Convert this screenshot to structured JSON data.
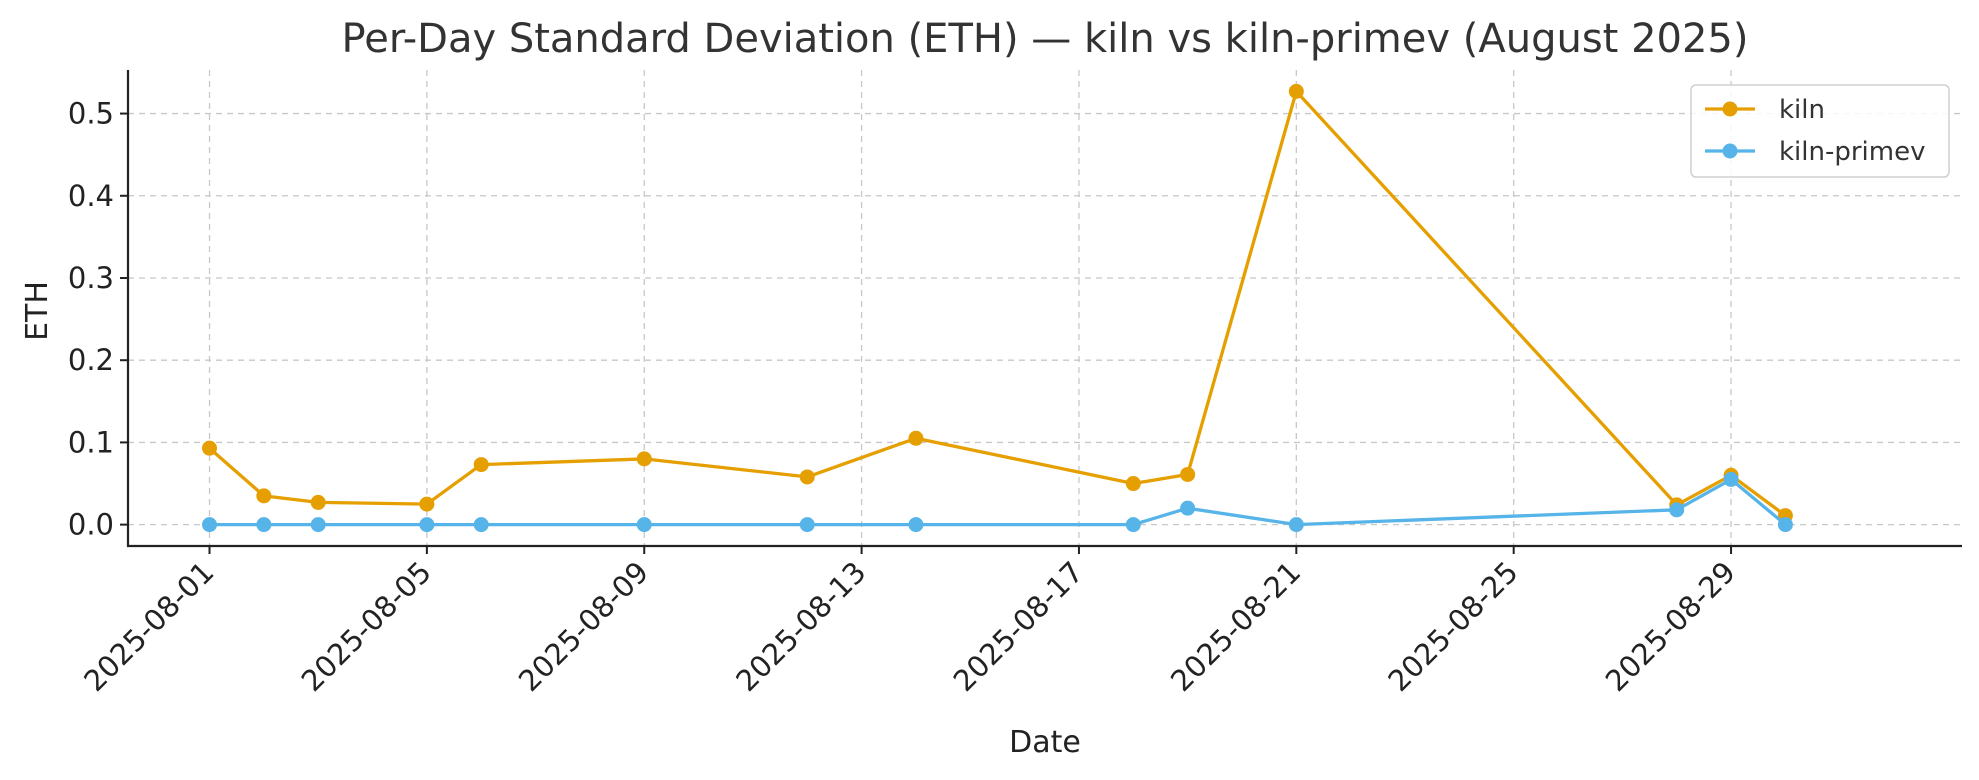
{
  "chart_data": {
    "type": "line",
    "title": "Per-Day Standard Deviation (ETH) — kiln vs kiln-primev (August 2025)",
    "xlabel": "Date",
    "ylabel": "ETH",
    "x_ticks": [
      "2025-08-01",
      "2025-08-05",
      "2025-08-09",
      "2025-08-13",
      "2025-08-17",
      "2025-08-21",
      "2025-08-25",
      "2025-08-29"
    ],
    "y_ticks": [
      0.0,
      0.1,
      0.2,
      0.3,
      0.4,
      0.5
    ],
    "y_tick_labels": [
      "0.0",
      "0.1",
      "0.2",
      "0.3",
      "0.4",
      "0.5"
    ],
    "xlim": [
      "2025-07-30T12:00",
      "2025-09-02T06:00"
    ],
    "ylim": [
      -0.026,
      0.553
    ],
    "grid": true,
    "legend_position": "top-right",
    "series": [
      {
        "name": "kiln",
        "color": "#E69F00",
        "points": [
          {
            "x": "2025-08-01",
            "y": 0.093
          },
          {
            "x": "2025-08-02",
            "y": 0.035
          },
          {
            "x": "2025-08-03",
            "y": 0.027
          },
          {
            "x": "2025-08-05",
            "y": 0.025
          },
          {
            "x": "2025-08-06",
            "y": 0.073
          },
          {
            "x": "2025-08-09",
            "y": 0.08
          },
          {
            "x": "2025-08-12",
            "y": 0.058
          },
          {
            "x": "2025-08-14",
            "y": 0.105
          },
          {
            "x": "2025-08-18",
            "y": 0.05
          },
          {
            "x": "2025-08-19",
            "y": 0.061
          },
          {
            "x": "2025-08-21",
            "y": 0.527
          },
          {
            "x": "2025-08-28",
            "y": 0.024
          },
          {
            "x": "2025-08-29",
            "y": 0.06
          },
          {
            "x": "2025-08-30",
            "y": 0.011
          }
        ]
      },
      {
        "name": "kiln-primev",
        "color": "#56B4E9",
        "points": [
          {
            "x": "2025-08-01",
            "y": 0.0
          },
          {
            "x": "2025-08-02",
            "y": 0.0
          },
          {
            "x": "2025-08-03",
            "y": 0.0
          },
          {
            "x": "2025-08-05",
            "y": 0.0
          },
          {
            "x": "2025-08-06",
            "y": 0.0
          },
          {
            "x": "2025-08-09",
            "y": 0.0
          },
          {
            "x": "2025-08-12",
            "y": 0.0
          },
          {
            "x": "2025-08-14",
            "y": 0.0
          },
          {
            "x": "2025-08-18",
            "y": 0.0
          },
          {
            "x": "2025-08-19",
            "y": 0.02
          },
          {
            "x": "2025-08-21",
            "y": 0.0
          },
          {
            "x": "2025-08-28",
            "y": 0.018
          },
          {
            "x": "2025-08-29",
            "y": 0.055
          },
          {
            "x": "2025-08-30",
            "y": 0.0
          }
        ]
      }
    ]
  }
}
